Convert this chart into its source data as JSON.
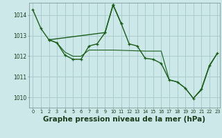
{
  "background_color": "#cce8e8",
  "grid_color": "#aacccc",
  "line_color": "#1a5c1a",
  "marker_color": "#1a5c1a",
  "xlabel": "Graphe pression niveau de la mer (hPa)",
  "xlabel_fontsize": 7.5,
  "ylim": [
    1009.5,
    1014.6
  ],
  "xlim": [
    -0.5,
    23.3
  ],
  "yticks": [
    1010,
    1011,
    1012,
    1013,
    1014
  ],
  "xticks": [
    0,
    1,
    2,
    3,
    4,
    5,
    6,
    7,
    8,
    9,
    10,
    11,
    12,
    13,
    14,
    15,
    16,
    17,
    18,
    19,
    20,
    21,
    22,
    23
  ],
  "series": [
    {
      "x": [
        0,
        1,
        2,
        9,
        10,
        11
      ],
      "y": [
        1014.25,
        1013.35,
        1012.8,
        1013.15,
        1014.5,
        1013.6
      ],
      "has_markers": true,
      "linewidth": 1.0
    },
    {
      "x": [
        2,
        3,
        4,
        5,
        6,
        7,
        8,
        9,
        10,
        11,
        12,
        13,
        14,
        15,
        16,
        17,
        18,
        19,
        20,
        21,
        22,
        23
      ],
      "y": [
        1012.8,
        1012.65,
        1012.05,
        1011.85,
        1011.85,
        1012.5,
        1012.6,
        1013.15,
        1014.5,
        1013.6,
        1012.6,
        1012.5,
        1011.9,
        1011.85,
        1011.65,
        1010.85,
        1010.75,
        1010.45,
        1009.95,
        1010.4,
        1011.55,
        1012.15
      ],
      "has_markers": true,
      "linewidth": 1.0
    },
    {
      "x": [
        2,
        3,
        4,
        5,
        6,
        7,
        8,
        9,
        10,
        14,
        15,
        16,
        17,
        18,
        19,
        20,
        21,
        22,
        23
      ],
      "y": [
        1012.8,
        1012.65,
        1012.2,
        1012.0,
        1012.0,
        1012.3,
        1012.3,
        1012.3,
        1012.3,
        1012.25,
        1012.25,
        1012.25,
        1010.85,
        1010.75,
        1010.45,
        1009.95,
        1010.35,
        1011.5,
        1012.15
      ],
      "has_markers": false,
      "linewidth": 0.8
    }
  ]
}
